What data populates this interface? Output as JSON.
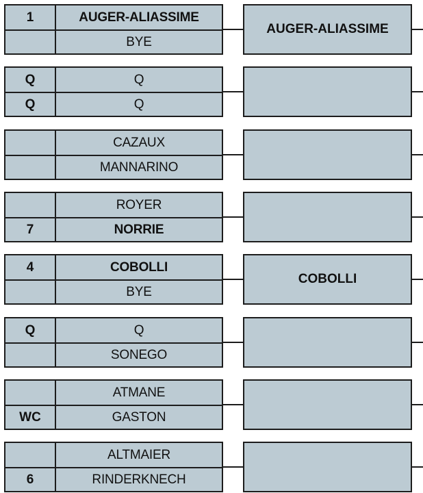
{
  "colors": {
    "box": "#bccbd3",
    "border": "#1c1c1c"
  },
  "matches": [
    {
      "players": [
        {
          "seed": "1",
          "name": "AUGER-ALIASSIME",
          "bold": true
        },
        {
          "seed": "",
          "name": "BYE",
          "bold": false
        }
      ],
      "winner": "AUGER-ALIASSIME"
    },
    {
      "players": [
        {
          "seed": "Q",
          "name": "Q",
          "bold": false
        },
        {
          "seed": "Q",
          "name": "Q",
          "bold": false
        }
      ],
      "winner": ""
    },
    {
      "players": [
        {
          "seed": "",
          "name": "CAZAUX",
          "bold": false
        },
        {
          "seed": "",
          "name": "MANNARINO",
          "bold": false
        }
      ],
      "winner": ""
    },
    {
      "players": [
        {
          "seed": "",
          "name": "ROYER",
          "bold": false
        },
        {
          "seed": "7",
          "name": "NORRIE",
          "bold": true
        }
      ],
      "winner": ""
    },
    {
      "players": [
        {
          "seed": "4",
          "name": "COBOLLI",
          "bold": true
        },
        {
          "seed": "",
          "name": "BYE",
          "bold": false
        }
      ],
      "winner": "COBOLLI"
    },
    {
      "players": [
        {
          "seed": "Q",
          "name": "Q",
          "bold": false
        },
        {
          "seed": "",
          "name": "SONEGO",
          "bold": false
        }
      ],
      "winner": ""
    },
    {
      "players": [
        {
          "seed": "",
          "name": "ATMANE",
          "bold": false
        },
        {
          "seed": "WC",
          "name": "GASTON",
          "bold": false
        }
      ],
      "winner": ""
    },
    {
      "players": [
        {
          "seed": "",
          "name": "ALTMAIER",
          "bold": false
        },
        {
          "seed": "6",
          "name": "RINDERKNECH",
          "bold": false
        }
      ],
      "winner": ""
    }
  ]
}
